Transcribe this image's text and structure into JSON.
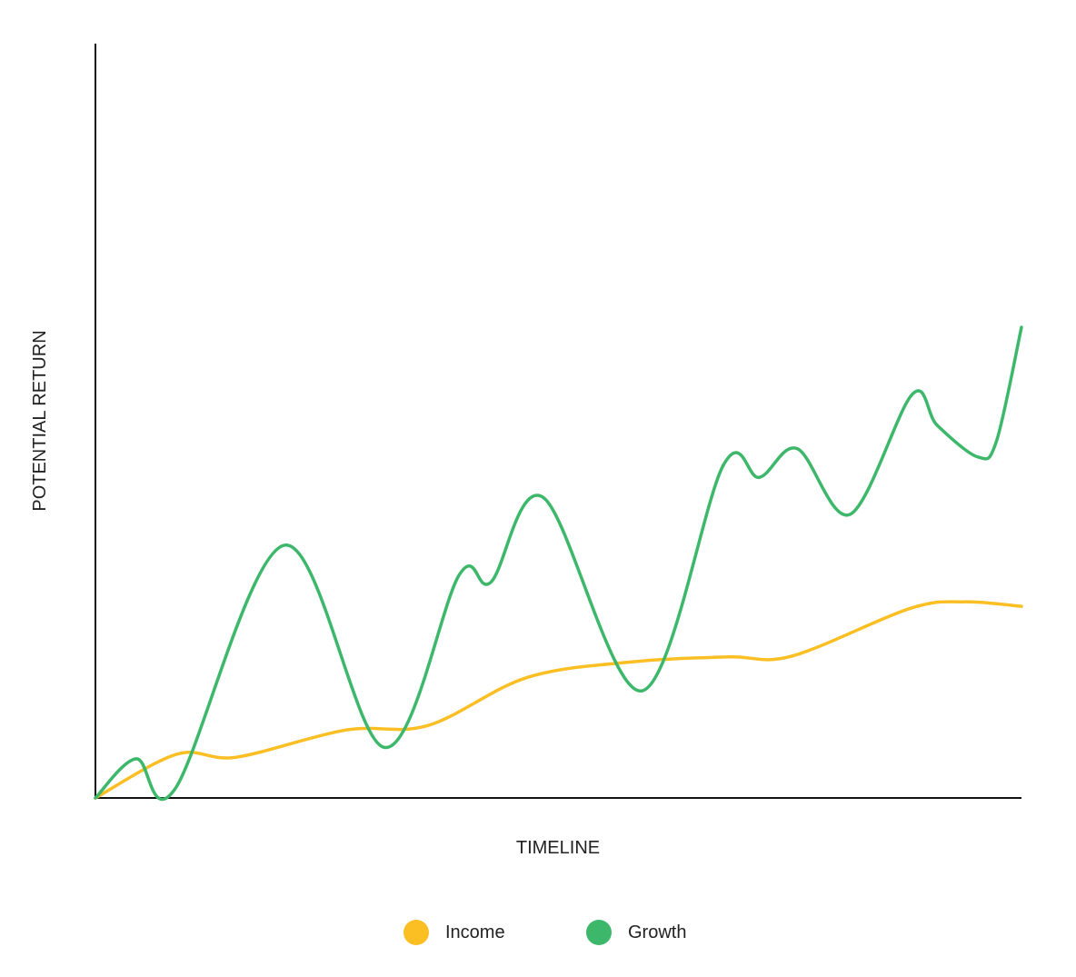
{
  "chart_data": {
    "type": "line",
    "title": "",
    "xlabel": "TIMELINE",
    "ylabel": "POTENTIAL RETURN",
    "xlim": [
      0,
      100
    ],
    "ylim": [
      0,
      100
    ],
    "grid": false,
    "legend_position": "bottom-center",
    "series": [
      {
        "name": "Income",
        "color": "#FBBF24",
        "x": [
          0,
          8.8,
          15.2,
          27.0,
          35.9,
          46.7,
          58.5,
          68.4,
          75.2,
          87.9,
          93.8,
          100
        ],
        "y": [
          0,
          5.8,
          5.4,
          9.0,
          9.6,
          16.0,
          18.1,
          18.7,
          18.8,
          25.1,
          26.0,
          25.4
        ]
      },
      {
        "name": "Growth",
        "color": "#3DB86B",
        "x": [
          0,
          4.4,
          8.6,
          20.4,
          31.2,
          39.3,
          42.7,
          48.4,
          59.0,
          67.8,
          71.7,
          75.8,
          81.5,
          88.2,
          90.9,
          95.3,
          97.3,
          100
        ],
        "y": [
          0,
          5.2,
          1.2,
          33.5,
          6.7,
          29.6,
          28.6,
          39.8,
          14.2,
          44.1,
          42.5,
          46.3,
          37.6,
          53.5,
          49.4,
          45.2,
          47.3,
          62.4
        ]
      }
    ]
  }
}
